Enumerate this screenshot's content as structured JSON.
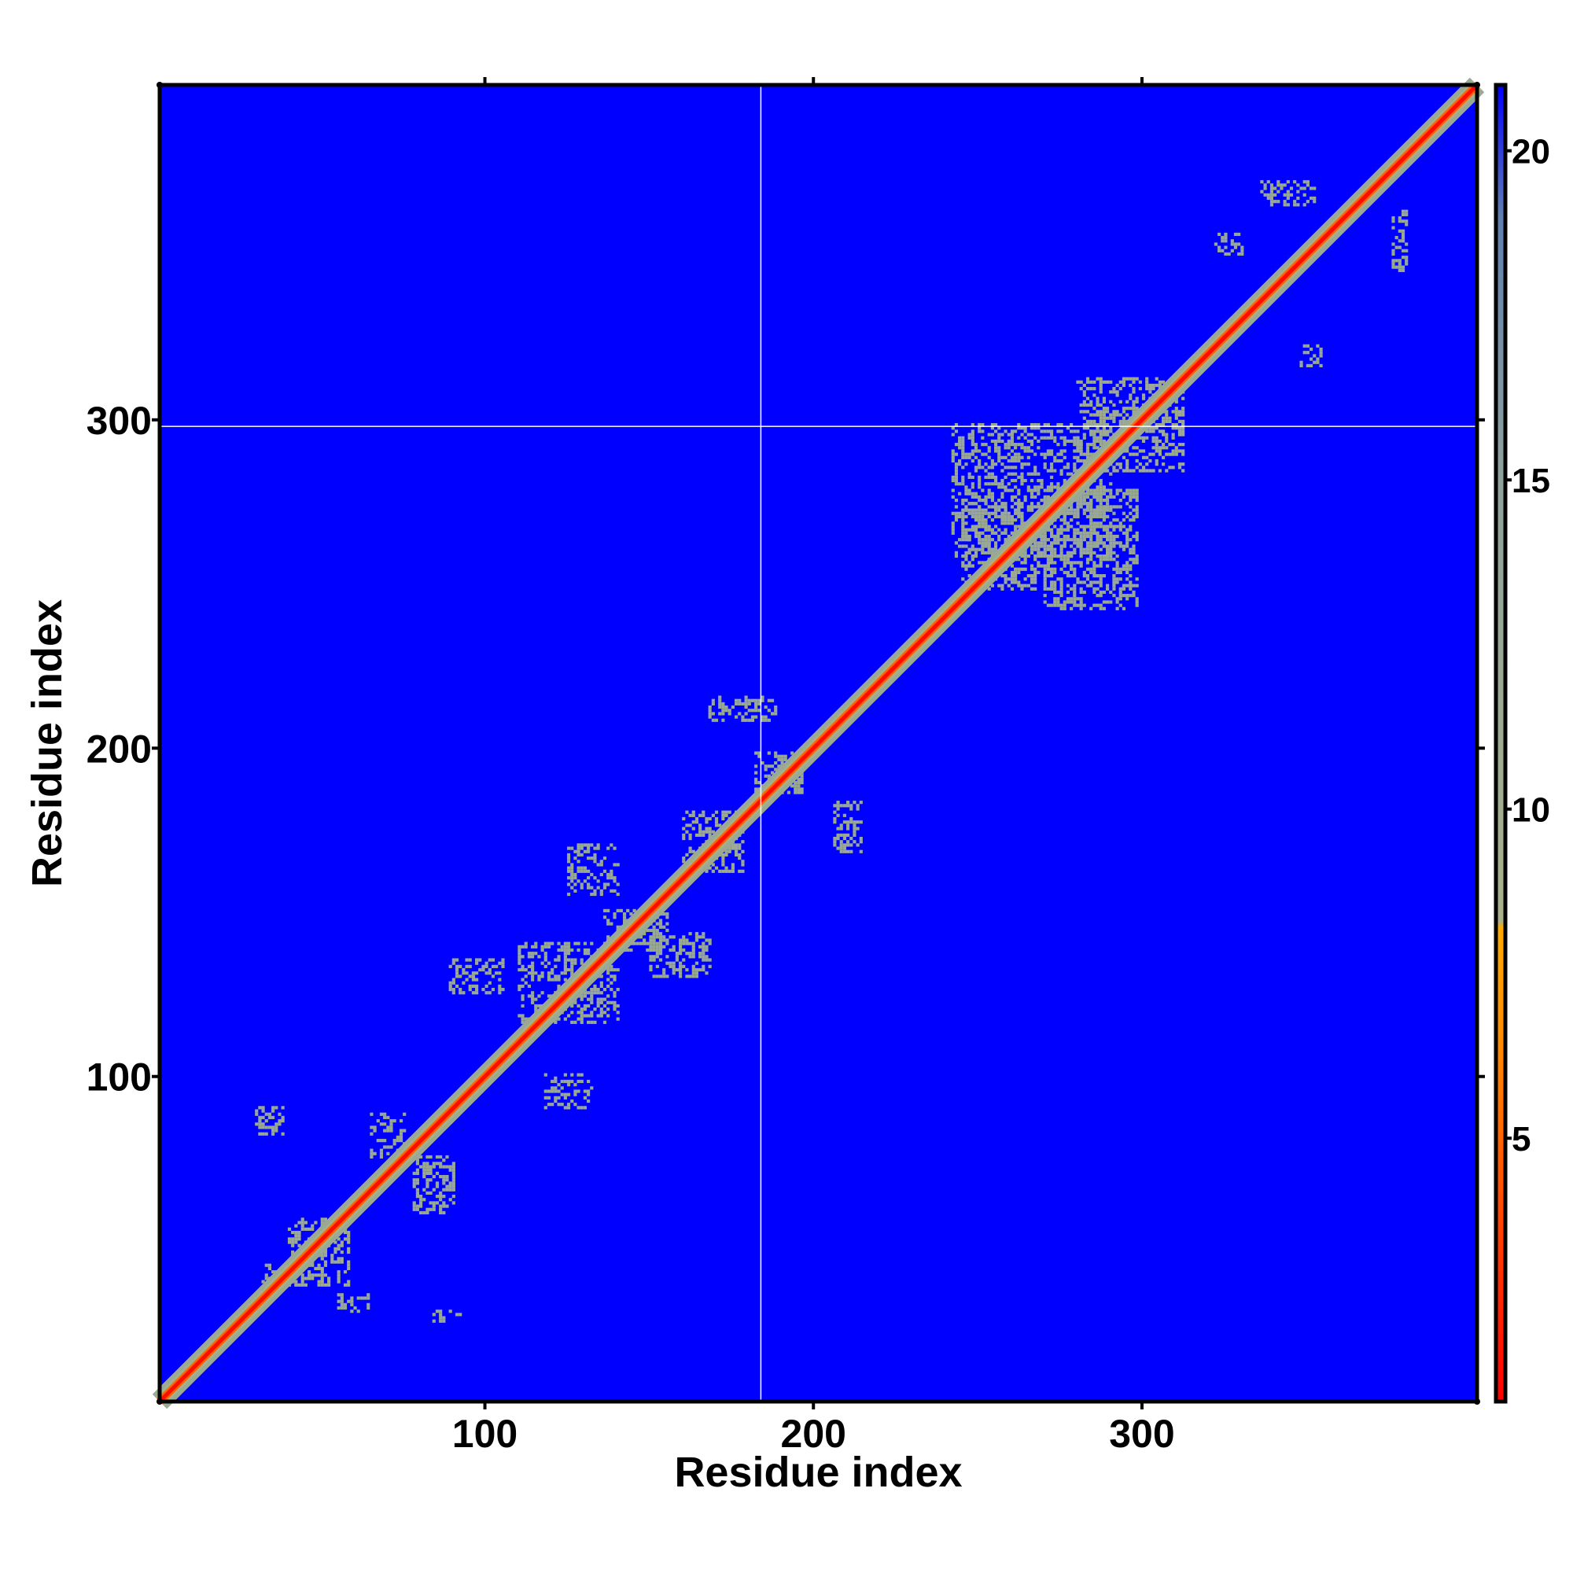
{
  "chart_data": {
    "type": "heatmap",
    "xlabel": "Residue index",
    "ylabel": "Residue index",
    "xlim": [
      1,
      402
    ],
    "ylim": [
      1,
      402
    ],
    "x_ticks": [
      100,
      200,
      300
    ],
    "x_tick_labels": [
      "100",
      "200",
      "300"
    ],
    "y_ticks": [
      100,
      200,
      300
    ],
    "y_tick_labels": [
      "100",
      "200",
      "300"
    ],
    "colorbar": {
      "range": [
        1,
        21
      ],
      "ticks": [
        5,
        10,
        15,
        20
      ],
      "tick_labels": [
        "5",
        "10",
        "15",
        "20"
      ],
      "stops": [
        {
          "value": 1,
          "color": "#ff0000"
        },
        {
          "value": 4,
          "color": "#ff4a00"
        },
        {
          "value": 6.5,
          "color": "#ff8c00"
        },
        {
          "value": 8.2,
          "color": "#ffaa00"
        },
        {
          "value": 8.3,
          "color": "#a8b18a"
        },
        {
          "value": 15,
          "color": "#8fa29c"
        },
        {
          "value": 19,
          "color": "#5f7fb0"
        },
        {
          "value": 21,
          "color": "#0000ff"
        }
      ]
    },
    "background_value": 21,
    "background_color": "#0000ff",
    "reference_lines": {
      "x": 184,
      "y": 298,
      "color": "#ffffff"
    },
    "diagonal": {
      "from": 1,
      "to": 402,
      "core_value": 1.5,
      "edge_value": 5
    },
    "contact_regions": [
      {
        "x": [
          40,
          58
        ],
        "y": [
          36,
          56
        ],
        "value": 11
      },
      {
        "x": [
          110,
          140
        ],
        "y": [
          116,
          140
        ],
        "value": 12
      },
      {
        "x": [
          160,
          178
        ],
        "y": [
          162,
          180
        ],
        "value": 11
      },
      {
        "x": [
          245,
          272
        ],
        "y": [
          248,
          274
        ],
        "value": 11
      },
      {
        "x": [
          280,
          312
        ],
        "y": [
          284,
          312
        ],
        "value": 11
      },
      {
        "x": [
          242,
          290
        ],
        "y": [
          258,
          298
        ],
        "value": 12
      },
      {
        "x": [
          270,
          298
        ],
        "y": [
          242,
          278
        ],
        "value": 12
      },
      {
        "x": [
          32,
          36
        ],
        "y": [
          36,
          42
        ],
        "value": 12
      },
      {
        "x": [
          55,
          64
        ],
        "y": [
          28,
          33
        ],
        "value": 12
      },
      {
        "x": [
          65,
          75
        ],
        "y": [
          75,
          88
        ],
        "value": 12
      },
      {
        "x": [
          78,
          90
        ],
        "y": [
          58,
          75
        ],
        "value": 12
      },
      {
        "x": [
          30,
          38
        ],
        "y": [
          82,
          90
        ],
        "value": 12
      },
      {
        "x": [
          84,
          92
        ],
        "y": [
          25,
          28
        ],
        "value": 12
      },
      {
        "x": [
          89,
          105
        ],
        "y": [
          125,
          135
        ],
        "value": 12
      },
      {
        "x": [
          118,
          132
        ],
        "y": [
          90,
          100
        ],
        "value": 12
      },
      {
        "x": [
          125,
          140
        ],
        "y": [
          155,
          170
        ],
        "value": 12
      },
      {
        "x": [
          150,
          168
        ],
        "y": [
          130,
          143
        ],
        "value": 12
      },
      {
        "x": [
          136,
          155
        ],
        "y": [
          138,
          150
        ],
        "value": 12
      },
      {
        "x": [
          168,
          188
        ],
        "y": [
          208,
          215
        ],
        "value": 12
      },
      {
        "x": [
          206,
          214
        ],
        "y": [
          168,
          183
        ],
        "value": 12
      },
      {
        "x": [
          182,
          196
        ],
        "y": [
          186,
          198
        ],
        "value": 12
      },
      {
        "x": [
          336,
          352
        ],
        "y": [
          365,
          372
        ],
        "value": 12
      },
      {
        "x": [
          376,
          380
        ],
        "y": [
          345,
          363
        ],
        "value": 12
      },
      {
        "x": [
          322,
          330
        ],
        "y": [
          350,
          356
        ],
        "value": 12
      },
      {
        "x": [
          348,
          354
        ],
        "y": [
          316,
          322
        ],
        "value": 12
      }
    ]
  }
}
